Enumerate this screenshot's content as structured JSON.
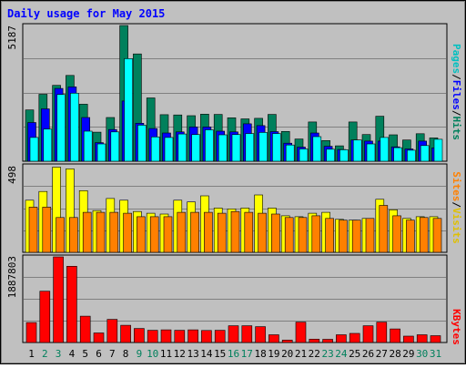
{
  "title": "Daily usage for May 2015",
  "colors": {
    "hits": "#00805c",
    "files": "#0000ff",
    "pages": "#00ffff",
    "visits": "#ffff00",
    "sites": "#ff8000",
    "kbytes": "#ff0000",
    "weekend_label": "#00805c",
    "weekday_label": "#000000",
    "plot_bg": "#c0c0c0",
    "title": "#0000ff"
  },
  "panels": {
    "top": {
      "max_label": "5187",
      "legend": [
        {
          "text": "Pages",
          "color": "#00c0c0"
        },
        {
          "text": "/",
          "color": "#000000"
        },
        {
          "text": "Files",
          "color": "#0000ff"
        },
        {
          "text": "/",
          "color": "#000000"
        },
        {
          "text": "Hits",
          "color": "#00805c"
        }
      ]
    },
    "middle": {
      "max_label": "498",
      "legend": [
        {
          "text": "Sites",
          "color": "#ff8000"
        },
        {
          "text": "/",
          "color": "#000000"
        },
        {
          "text": "Visits",
          "color": "#e0c000"
        }
      ]
    },
    "bottom": {
      "max_label": "1887803",
      "legend": [
        {
          "text": "KBytes",
          "color": "#ff0000"
        }
      ]
    }
  },
  "chart_data": {
    "type": "bar",
    "title": "Daily usage for May 2015",
    "categories": [
      "1",
      "2",
      "3",
      "4",
      "5",
      "6",
      "7",
      "8",
      "9",
      "10",
      "11",
      "12",
      "13",
      "14",
      "15",
      "16",
      "17",
      "18",
      "19",
      "20",
      "21",
      "22",
      "23",
      "24",
      "25",
      "26",
      "27",
      "28",
      "29",
      "30",
      "31"
    ],
    "weekend_days": [
      "2",
      "3",
      "9",
      "10",
      "16",
      "17",
      "23",
      "24",
      "30",
      "31"
    ],
    "series": [
      {
        "name": "Hits",
        "panel": "top",
        "ymax": 5187,
        "values": [
          1960,
          2560,
          2900,
          3280,
          2180,
          1110,
          1670,
          5187,
          4100,
          2420,
          1780,
          1770,
          1740,
          1800,
          1790,
          1660,
          1620,
          1640,
          1790,
          1140,
          850,
          1500,
          790,
          590,
          1500,
          1020,
          1720,
          1010,
          810,
          1050,
          890
        ]
      },
      {
        "name": "Files",
        "panel": "top",
        "ymax": 5187,
        "values": [
          1480,
          2000,
          2780,
          2840,
          1670,
          710,
          1210,
          2300,
          1450,
          1250,
          1080,
          1120,
          1310,
          1310,
          1150,
          1120,
          1430,
          1360,
          1130,
          690,
          540,
          1080,
          570,
          450,
          810,
          770,
          770,
          550,
          470,
          770,
          510
        ]
      },
      {
        "name": "Pages",
        "panel": "top",
        "ymax": 5187,
        "values": [
          910,
          1230,
          2550,
          2600,
          1150,
          660,
          1120,
          3920,
          1380,
          930,
          910,
          1040,
          1020,
          1200,
          1010,
          1020,
          1060,
          1100,
          1060,
          620,
          470,
          940,
          460,
          440,
          810,
          660,
          910,
          520,
          420,
          600,
          840
        ]
      },
      {
        "name": "Visits",
        "panel": "middle",
        "ymax": 498,
        "values": [
          300,
          350,
          490,
          480,
          355,
          240,
          310,
          300,
          235,
          225,
          220,
          300,
          290,
          325,
          255,
          250,
          255,
          330,
          255,
          210,
          205,
          225,
          230,
          190,
          185,
          195,
          305,
          245,
          195,
          205,
          205
        ]
      },
      {
        "name": "Sites",
        "panel": "middle",
        "ymax": 498,
        "values": [
          260,
          260,
          200,
          200,
          230,
          230,
          230,
          225,
          205,
          205,
          205,
          230,
          230,
          230,
          225,
          235,
          230,
          225,
          220,
          200,
          200,
          210,
          195,
          185,
          185,
          195,
          270,
          210,
          185,
          200,
          195
        ]
      },
      {
        "name": "KBytes",
        "panel": "bottom",
        "ymax": 1887803,
        "values": [
          440000,
          1130000,
          1887803,
          1680000,
          580000,
          210000,
          510000,
          380000,
          310000,
          270000,
          280000,
          270000,
          280000,
          265000,
          270000,
          370000,
          370000,
          350000,
          170000,
          55000,
          450000,
          75000,
          70000,
          170000,
          200000,
          370000,
          450000,
          300000,
          140000,
          170000,
          150000
        ]
      }
    ]
  }
}
